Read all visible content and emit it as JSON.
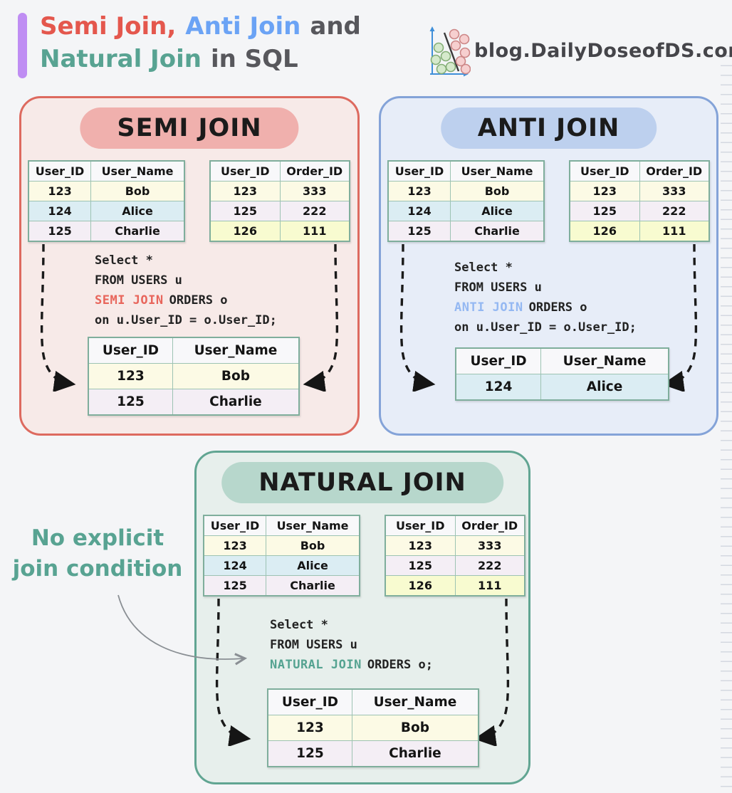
{
  "colors": {
    "accent_bar": "#bf8df3",
    "semi_accent": "#e4574d",
    "anti_accent": "#6ba3f5",
    "natural_accent": "#58a392",
    "semi_panel_bg": "#f7eae8",
    "semi_panel_border": "#dd6a5f",
    "semi_pill": "#f0b0ad",
    "anti_panel_bg": "#e7edf8",
    "anti_panel_border": "#84a3d8",
    "anti_pill": "#bdd0ee",
    "natural_panel_bg": "#e7efec",
    "natural_panel_border": "#61a592",
    "natural_pill": "#b7d7cc",
    "table_border": "#7fae9c",
    "row_yellow": "#fcfae5",
    "row_blue": "#dbedf3",
    "row_lavender": "#f4eef5",
    "row_green_yellow": "#f8fbd0"
  },
  "header": {
    "seg_semi": "Semi Join,",
    "seg_anti": "Anti Join",
    "seg_and": "and",
    "seg_natural": "Natural Join",
    "seg_insql": "in SQL",
    "logo_text": "blog.DailyDoseofDS.com"
  },
  "tables": {
    "users": {
      "headers": [
        "User_ID",
        "User_Name"
      ],
      "rows": [
        [
          "123",
          "Bob"
        ],
        [
          "124",
          "Alice"
        ],
        [
          "125",
          "Charlie"
        ]
      ]
    },
    "orders": {
      "headers": [
        "User_ID",
        "Order_ID"
      ],
      "rows": [
        [
          "123",
          "333"
        ],
        [
          "125",
          "222"
        ],
        [
          "126",
          "111"
        ]
      ]
    }
  },
  "panels": {
    "semi": {
      "title": "SEMI JOIN",
      "sql": {
        "l1": "Select *",
        "l2": "FROM USERS u",
        "kw": "SEMI JOIN",
        "kw_rest": "ORDERS o",
        "l4": "on u.User_ID = o.User_ID;"
      },
      "result": {
        "headers": [
          "User_ID",
          "User_Name"
        ],
        "rows": [
          [
            "123",
            "Bob"
          ],
          [
            "125",
            "Charlie"
          ]
        ]
      }
    },
    "anti": {
      "title": "ANTI JOIN",
      "sql": {
        "l1": "Select *",
        "l2": "FROM USERS u",
        "kw": "ANTI JOIN",
        "kw_rest": "ORDERS o",
        "l4": "on u.User_ID = o.User_ID;"
      },
      "result": {
        "headers": [
          "User_ID",
          "User_Name"
        ],
        "rows": [
          [
            "124",
            "Alice"
          ]
        ]
      }
    },
    "natural": {
      "title": "NATURAL JOIN",
      "sql": {
        "l1": "Select *",
        "l2": "FROM USERS u",
        "kw": "NATURAL JOIN",
        "kw_rest": "ORDERS o;"
      },
      "result": {
        "headers": [
          "User_ID",
          "User_Name"
        ],
        "rows": [
          [
            "123",
            "Bob"
          ],
          [
            "125",
            "Charlie"
          ]
        ]
      }
    }
  },
  "annotation": {
    "line1": "No explicit",
    "line2": "join condition"
  }
}
